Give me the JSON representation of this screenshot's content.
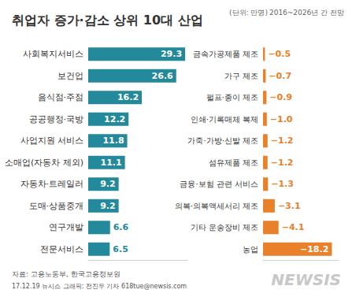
{
  "header": {
    "title": "취업자 증가·감소 상위 10대 산업",
    "unit": "(단위: 만명)",
    "period": "2016~2026년 간 전망"
  },
  "chart_data": [
    {
      "type": "bar",
      "orientation": "horizontal",
      "categories": [
        "사회복지서비스",
        "보건업",
        "음식점·주점",
        "공공행정·국방",
        "사업지원 서비스",
        "소매업(자동차 제외)",
        "자동차·트레일러",
        "도매·상품중개",
        "연구개발",
        "전문서비스"
      ],
      "values": [
        29.3,
        26.6,
        16.2,
        12.2,
        11.8,
        11.1,
        9.2,
        9.2,
        6.6,
        6.5
      ],
      "color": "#23899b",
      "xlim": [
        0,
        30
      ],
      "data_labels": true,
      "tick_labels": false,
      "grid": false
    },
    {
      "type": "bar",
      "orientation": "horizontal",
      "categories": [
        "금속가공제품 제조",
        "가구 제조",
        "펄프·종이 제조",
        "인쇄·기록매체 복제",
        "가죽·가방·신발 제조",
        "섬유제품 제조",
        "금융·보험 관련 서비스",
        "의복·의복액세서리 제조",
        "기타 운송장비 제조",
        "농업"
      ],
      "values": [
        -0.5,
        -0.7,
        -0.9,
        -1.0,
        -1.2,
        -1.2,
        -1.3,
        -3.1,
        -4.1,
        -18.2
      ],
      "value_labels": [
        "−0.5",
        "−0.7",
        "−0.9",
        "−1.0",
        "−1.2",
        "−1.2",
        "−1.3",
        "−3.1",
        "−4.1",
        "−18.2"
      ],
      "color": "#e8812a",
      "xlim": [
        0,
        -20
      ],
      "data_labels": true,
      "tick_labels": false,
      "grid": false
    }
  ],
  "footer": {
    "source": "자료: 고용노동부, 한국고용정보원",
    "credit": "17.12.19 뉴시스 그래픽: 전진우 기자 618tue@newsis.com",
    "logo": "NEWSIS"
  }
}
